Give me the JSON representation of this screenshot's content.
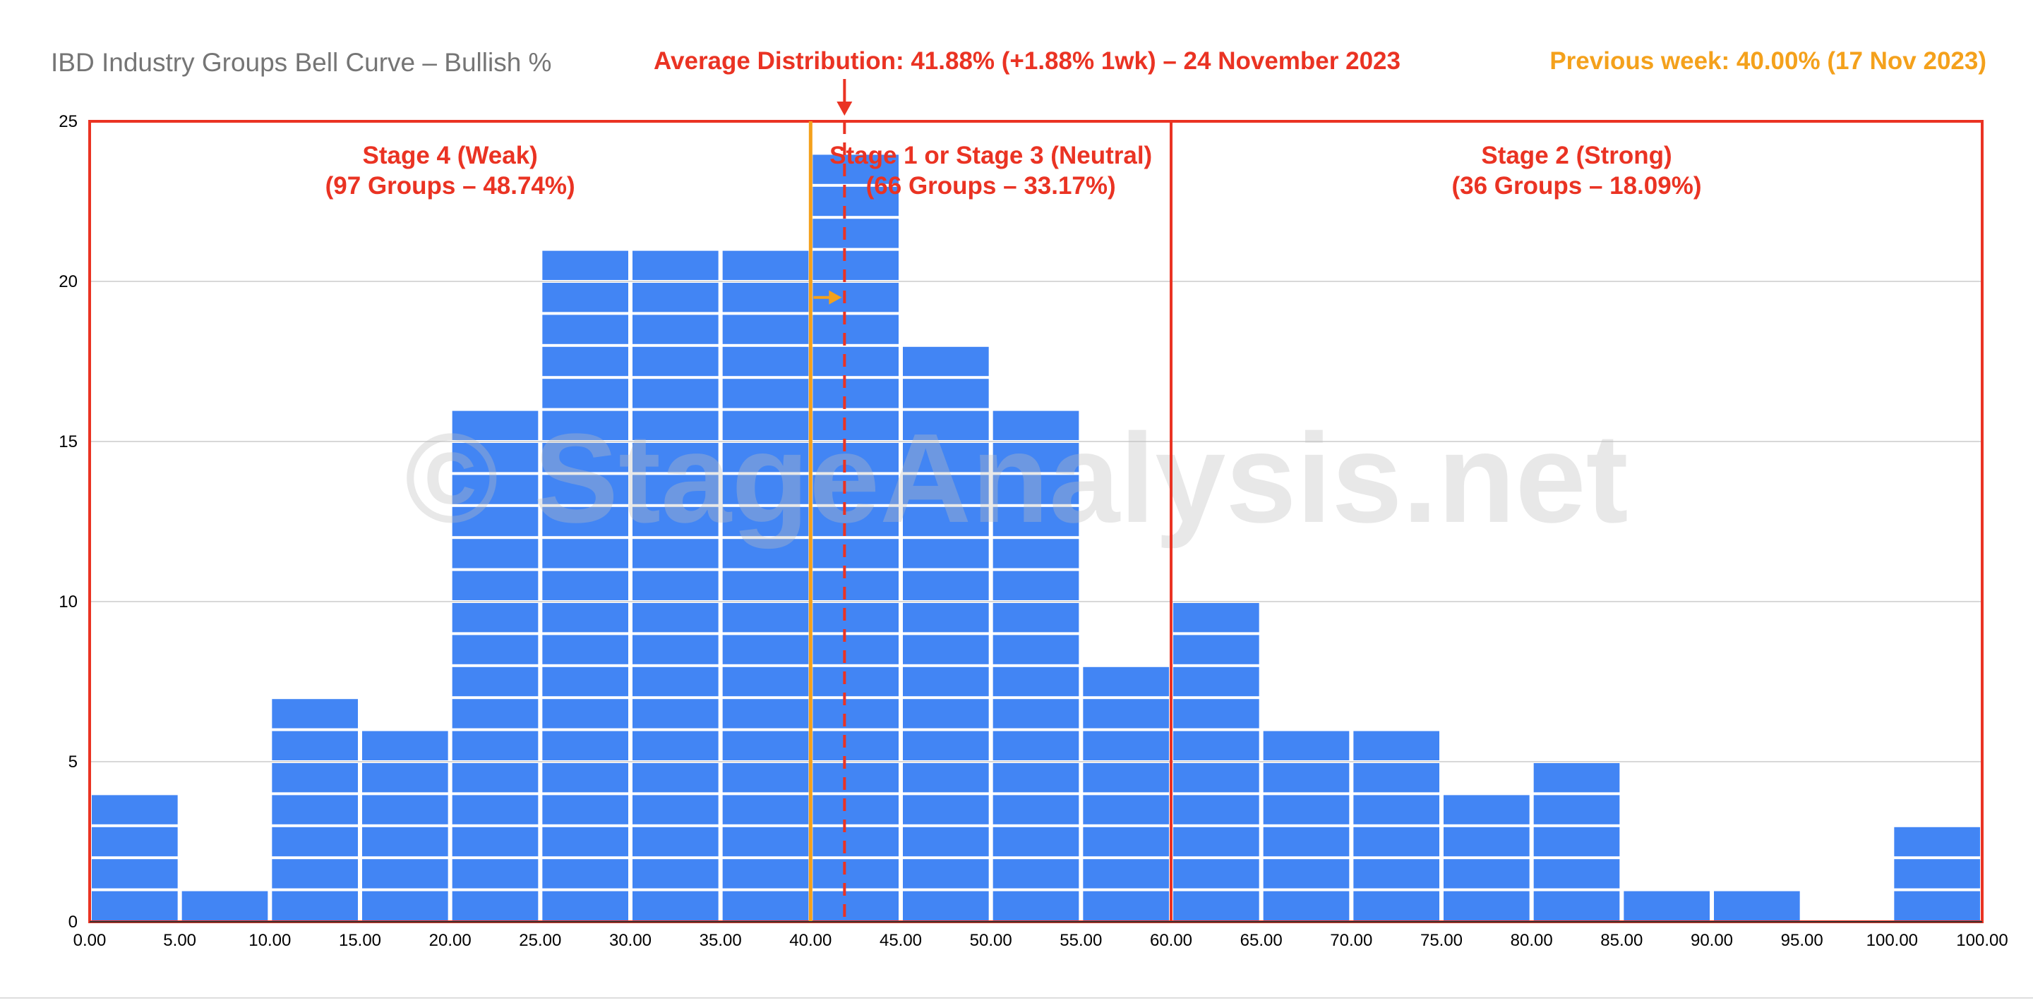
{
  "chart_data": {
    "type": "bar",
    "title": "IBD Industry Groups Bell Curve – Bullish %",
    "headline": "Average Distribution: 41.88% (+1.88% 1wk) – 24 November 2023",
    "previous_week_label": "Previous week: 40.00% (17 Nov 2023)",
    "watermark": "© StageAnalysis.net",
    "x_ticks": [
      "0.00",
      "5.00",
      "10.00",
      "15.00",
      "20.00",
      "25.00",
      "30.00",
      "35.00",
      "40.00",
      "45.00",
      "50.00",
      "55.00",
      "60.00",
      "65.00",
      "70.00",
      "75.00",
      "80.00",
      "85.00",
      "90.00",
      "95.00",
      "100.00",
      "100.00"
    ],
    "y_ticks": [
      "0",
      "5",
      "10",
      "15",
      "20",
      "25"
    ],
    "xlim": [
      0,
      105
    ],
    "ylim": [
      0,
      25
    ],
    "grid": true,
    "bins": [
      {
        "from": 0,
        "to": 5,
        "count": 4
      },
      {
        "from": 5,
        "to": 10,
        "count": 1
      },
      {
        "from": 10,
        "to": 15,
        "count": 7
      },
      {
        "from": 15,
        "to": 20,
        "count": 6
      },
      {
        "from": 20,
        "to": 25,
        "count": 16
      },
      {
        "from": 25,
        "to": 30,
        "count": 21
      },
      {
        "from": 30,
        "to": 35,
        "count": 21
      },
      {
        "from": 35,
        "to": 40,
        "count": 21
      },
      {
        "from": 40,
        "to": 45,
        "count": 24
      },
      {
        "from": 45,
        "to": 50,
        "count": 18
      },
      {
        "from": 50,
        "to": 55,
        "count": 16
      },
      {
        "from": 55,
        "to": 60,
        "count": 8
      },
      {
        "from": 60,
        "to": 65,
        "count": 10
      },
      {
        "from": 65,
        "to": 70,
        "count": 6
      },
      {
        "from": 70,
        "to": 75,
        "count": 6
      },
      {
        "from": 75,
        "to": 80,
        "count": 4
      },
      {
        "from": 80,
        "to": 85,
        "count": 5
      },
      {
        "from": 85,
        "to": 90,
        "count": 1
      },
      {
        "from": 90,
        "to": 95,
        "count": 1
      },
      {
        "from": 95,
        "to": 100,
        "count": 0
      },
      {
        "from": 100,
        "to": 105,
        "count": 3
      }
    ],
    "average_line": 41.88,
    "previous_week_line": 40.0,
    "stages": [
      {
        "from": 0,
        "to": 40,
        "label_line1": "Stage 4 (Weak)",
        "label_line2": "(97 Groups – 48.74%)"
      },
      {
        "from": 40,
        "to": 60,
        "label_line1": "Stage 1 or Stage 3 (Neutral)",
        "label_line2": "(66 Groups – 33.17%)"
      },
      {
        "from": 60,
        "to": 105,
        "label_line1": "Stage 2 (Strong)",
        "label_line2": "(36 Groups – 18.09%)"
      }
    ],
    "colors": {
      "bar": "#4285f4",
      "stage_box": "#ea3323",
      "average_line": "#ea3323",
      "previous_week": "#f4a11c",
      "title": "#757575",
      "grid": "#cccccc",
      "watermark": "#bdbdbd"
    }
  }
}
